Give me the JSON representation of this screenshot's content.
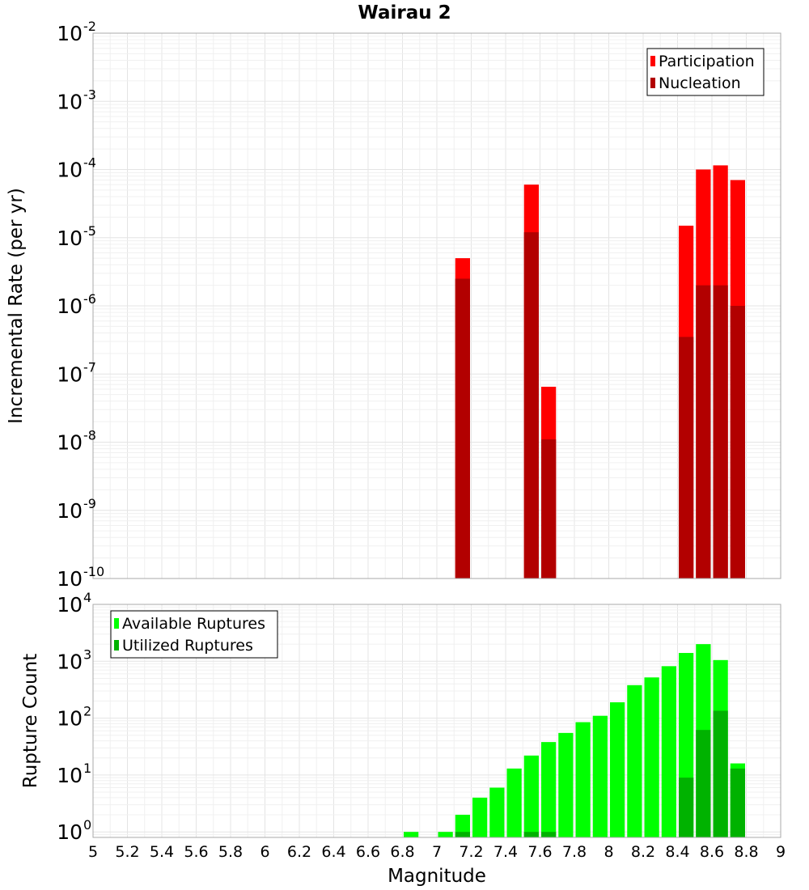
{
  "title": "Wairau 2",
  "chart_data": [
    {
      "type": "bar",
      "ylabel": "Incremental Rate (per yr)",
      "yscale": "log",
      "ylim": [
        1e-10,
        0.01
      ],
      "xlim": [
        5,
        9
      ],
      "bin_width": 0.1,
      "legend_position": "top-right",
      "y_ticks": [
        {
          "base": "10",
          "exp": "-10",
          "value": 1e-10
        },
        {
          "base": "10",
          "exp": "-9",
          "value": 1e-09
        },
        {
          "base": "10",
          "exp": "-8",
          "value": 1e-08
        },
        {
          "base": "10",
          "exp": "-7",
          "value": 1e-07
        },
        {
          "base": "10",
          "exp": "-6",
          "value": 1e-06
        },
        {
          "base": "10",
          "exp": "-5",
          "value": 1e-05
        },
        {
          "base": "10",
          "exp": "-4",
          "value": 0.0001
        },
        {
          "base": "10",
          "exp": "-3",
          "value": 0.001
        },
        {
          "base": "10",
          "exp": "-2",
          "value": 0.01
        }
      ],
      "series": [
        {
          "name": "Participation",
          "color": "#ff0000",
          "points": [
            [
              7.15,
              5e-06
            ],
            [
              7.55,
              6e-05
            ],
            [
              7.65,
              6.5e-08
            ],
            [
              8.45,
              1.5e-05
            ],
            [
              8.55,
              0.0001
            ],
            [
              8.65,
              0.000115
            ],
            [
              8.75,
              7e-05
            ]
          ]
        },
        {
          "name": "Nucleation",
          "color": "#b20000",
          "points": [
            [
              7.15,
              2.5e-06
            ],
            [
              7.55,
              1.2e-05
            ],
            [
              7.65,
              1.1e-08
            ],
            [
              8.45,
              3.5e-07
            ],
            [
              8.55,
              2e-06
            ],
            [
              8.65,
              2e-06
            ],
            [
              8.75,
              1e-06
            ]
          ]
        }
      ]
    },
    {
      "type": "bar",
      "xlabel": "Magnitude",
      "ylabel": "Rupture Count",
      "yscale": "log",
      "ylim": [
        0.8,
        10000
      ],
      "xlim": [
        5,
        9
      ],
      "bin_width": 0.1,
      "legend_position": "top-left",
      "x_ticks": [
        "5",
        "5.2",
        "5.4",
        "5.6",
        "5.8",
        "6",
        "6.2",
        "6.4",
        "6.6",
        "6.8",
        "7",
        "7.2",
        "7.4",
        "7.6",
        "7.8",
        "8",
        "8.2",
        "8.4",
        "8.6",
        "8.8",
        "9"
      ],
      "y_ticks": [
        {
          "base": "10",
          "exp": "0",
          "value": 1
        },
        {
          "base": "10",
          "exp": "1",
          "value": 10
        },
        {
          "base": "10",
          "exp": "2",
          "value": 100
        },
        {
          "base": "10",
          "exp": "3",
          "value": 1000
        },
        {
          "base": "10",
          "exp": "4",
          "value": 10000
        }
      ],
      "series": [
        {
          "name": "Available Ruptures",
          "color": "#00ff00",
          "points": [
            [
              6.85,
              1
            ],
            [
              7.05,
              1
            ],
            [
              7.15,
              2
            ],
            [
              7.25,
              4
            ],
            [
              7.35,
              6
            ],
            [
              7.45,
              13
            ],
            [
              7.55,
              22
            ],
            [
              7.65,
              38
            ],
            [
              7.75,
              55
            ],
            [
              7.85,
              85
            ],
            [
              7.95,
              110
            ],
            [
              8.05,
              190
            ],
            [
              8.15,
              380
            ],
            [
              8.25,
              520
            ],
            [
              8.35,
              820
            ],
            [
              8.45,
              1400
            ],
            [
              8.55,
              2000
            ],
            [
              8.65,
              1050
            ],
            [
              8.75,
              16
            ]
          ]
        },
        {
          "name": "Utilized Ruptures",
          "color": "#00b200",
          "points": [
            [
              7.15,
              1
            ],
            [
              7.55,
              1
            ],
            [
              7.65,
              1
            ],
            [
              8.45,
              9
            ],
            [
              8.55,
              62
            ],
            [
              8.65,
              135
            ],
            [
              8.75,
              13
            ]
          ]
        }
      ]
    }
  ]
}
